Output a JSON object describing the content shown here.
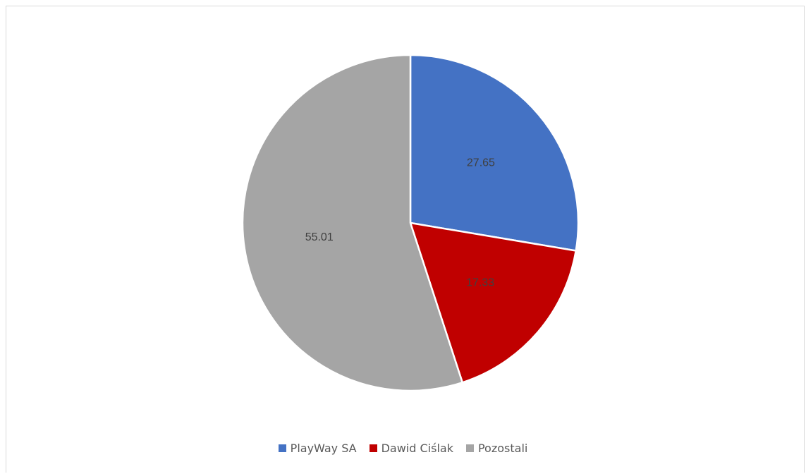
{
  "chart_data": {
    "type": "pie",
    "start_angle_deg": 0,
    "direction": "clockwise",
    "legend_position": "bottom",
    "slices": [
      {
        "name": "PlayWay SA",
        "value": 27.65,
        "label": "27.65",
        "color": "#4472C4"
      },
      {
        "name": "Dawid Ciślak",
        "value": 17.33,
        "label": "17.33",
        "color": "#C00000"
      },
      {
        "name": "Pozostali",
        "value": 55.01,
        "label": "55.01",
        "color": "#A5A5A5"
      }
    ]
  }
}
